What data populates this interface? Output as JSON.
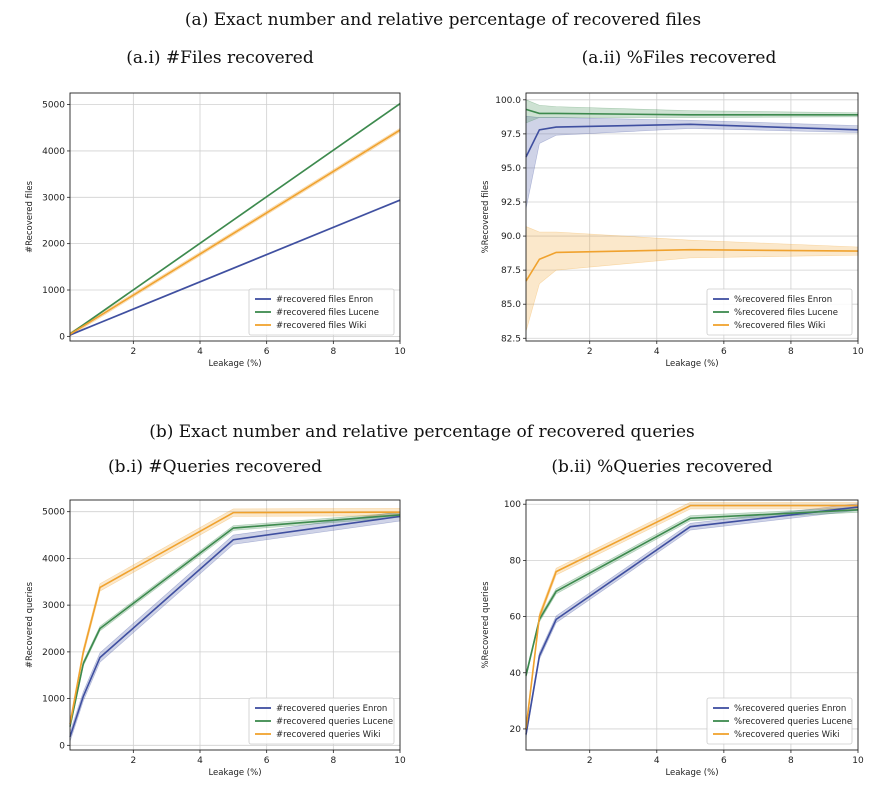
{
  "headings": {
    "section_a": "(a) Exact number and relative percentage of recovered files",
    "section_b": "(b) Exact number and relative percentage of recovered queries"
  },
  "chart_data": [
    {
      "id": "a1",
      "type": "line",
      "title": "(a.i) #Files recovered",
      "xlabel": "Leakage (%)",
      "ylabel": "#Recovered files",
      "xlim": [
        0.1,
        10
      ],
      "ylim": [
        -100,
        5250
      ],
      "xticks": [
        2,
        4,
        6,
        8,
        10
      ],
      "yticks": [
        0,
        1000,
        2000,
        3000,
        4000,
        5000
      ],
      "grid": true,
      "legend_position": "lower-right",
      "series": [
        {
          "name": "#recovered files Enron",
          "color": "#3f4fa0",
          "x": [
            0.1,
            0.5,
            1,
            5,
            10
          ],
          "y": [
            30,
            148,
            295,
            1470,
            2940
          ],
          "band": 15
        },
        {
          "name": "#recovered files Lucene",
          "color": "#3d8a4e",
          "x": [
            0.1,
            0.5,
            1,
            5,
            10
          ],
          "y": [
            50,
            250,
            500,
            2510,
            5020
          ],
          "band": 15
        },
        {
          "name": "#recovered files Wiki",
          "color": "#f0a22e",
          "x": [
            0.1,
            0.5,
            1,
            5,
            10
          ],
          "y": [
            45,
            222,
            445,
            2220,
            4450
          ],
          "band": 40
        }
      ]
    },
    {
      "id": "a2",
      "type": "line",
      "title": "(a.ii) %Files recovered",
      "xlabel": "Leakage (%)",
      "ylabel": "%Recovered files",
      "xlim": [
        0.1,
        10
      ],
      "ylim": [
        82.3,
        100.5
      ],
      "xticks": [
        2,
        4,
        6,
        8,
        10
      ],
      "yticks": [
        82.5,
        85.0,
        87.5,
        90.0,
        92.5,
        95.0,
        97.5,
        100.0
      ],
      "grid": true,
      "legend_position": "lower-right",
      "series": [
        {
          "name": "%recovered files Enron",
          "color": "#3f4fa0",
          "x": [
            0.1,
            0.5,
            1,
            5,
            10
          ],
          "y": [
            95.8,
            97.8,
            98.0,
            98.2,
            97.8
          ],
          "lower": [
            92.0,
            96.8,
            97.4,
            97.9,
            97.6
          ],
          "upper": [
            98.8,
            98.7,
            98.7,
            98.5,
            98.1
          ]
        },
        {
          "name": "%recovered files Lucene",
          "color": "#3d8a4e",
          "x": [
            0.1,
            0.5,
            1,
            5,
            10
          ],
          "y": [
            99.3,
            99.0,
            99.0,
            98.9,
            98.9
          ],
          "lower": [
            98.3,
            98.7,
            98.7,
            98.7,
            98.75
          ],
          "upper": [
            100.0,
            99.6,
            99.5,
            99.2,
            99.05
          ]
        },
        {
          "name": "%recovered files Wiki",
          "color": "#f0a22e",
          "x": [
            0.1,
            0.5,
            1,
            5,
            10
          ],
          "y": [
            86.7,
            88.3,
            88.8,
            89.0,
            88.9
          ],
          "lower": [
            83.0,
            86.5,
            87.5,
            88.4,
            88.6
          ],
          "upper": [
            90.7,
            90.3,
            90.3,
            89.7,
            89.2
          ]
        }
      ]
    },
    {
      "id": "b1",
      "type": "line",
      "title": "(b.i) #Queries recovered",
      "xlabel": "Leakage (%)",
      "ylabel": "#Recovered queries",
      "xlim": [
        0.1,
        10
      ],
      "ylim": [
        -100,
        5250
      ],
      "xticks": [
        2,
        4,
        6,
        8,
        10
      ],
      "yticks": [
        0,
        1000,
        2000,
        3000,
        4000,
        5000
      ],
      "grid": true,
      "legend_position": "lower-right",
      "series": [
        {
          "name": "#recovered queries Enron",
          "color": "#3f4fa0",
          "x": [
            0.1,
            0.5,
            1,
            5,
            10
          ],
          "y": [
            180,
            1050,
            1880,
            4400,
            4900
          ],
          "band": 100
        },
        {
          "name": "#recovered queries Lucene",
          "color": "#3d8a4e",
          "x": [
            0.1,
            0.5,
            1,
            5,
            10
          ],
          "y": [
            400,
            1750,
            2500,
            4650,
            4930
          ],
          "band": 50
        },
        {
          "name": "#recovered queries Wiki",
          "color": "#f0a22e",
          "x": [
            0.1,
            0.5,
            1,
            5,
            10
          ],
          "y": [
            450,
            2000,
            3380,
            4980,
            4990
          ],
          "band": 80
        }
      ]
    },
    {
      "id": "b2",
      "type": "line",
      "title": "(b.ii) %Queries recovered",
      "xlabel": "Leakage (%)",
      "ylabel": "%Recovered queries",
      "xlim": [
        0.1,
        10
      ],
      "ylim": [
        12.5,
        101.5
      ],
      "xticks": [
        2,
        4,
        6,
        8,
        10
      ],
      "yticks": [
        20,
        40,
        60,
        80,
        100
      ],
      "grid": true,
      "legend_position": "lower-right",
      "series": [
        {
          "name": "%recovered queries Enron",
          "color": "#3f4fa0",
          "x": [
            0.1,
            0.5,
            1,
            5,
            10
          ],
          "y": [
            18,
            46,
            59,
            92,
            99
          ],
          "band": 1.2
        },
        {
          "name": "%recovered queries Lucene",
          "color": "#3d8a4e",
          "x": [
            0.1,
            0.5,
            1,
            5,
            10
          ],
          "y": [
            39,
            59,
            69,
            95,
            98
          ],
          "band": 0.9
        },
        {
          "name": "%recovered queries Wiki",
          "color": "#f0a22e",
          "x": [
            0.1,
            0.5,
            1,
            5,
            10
          ],
          "y": [
            20,
            60,
            76,
            99.5,
            99.5
          ],
          "band": 1.2
        }
      ]
    }
  ]
}
